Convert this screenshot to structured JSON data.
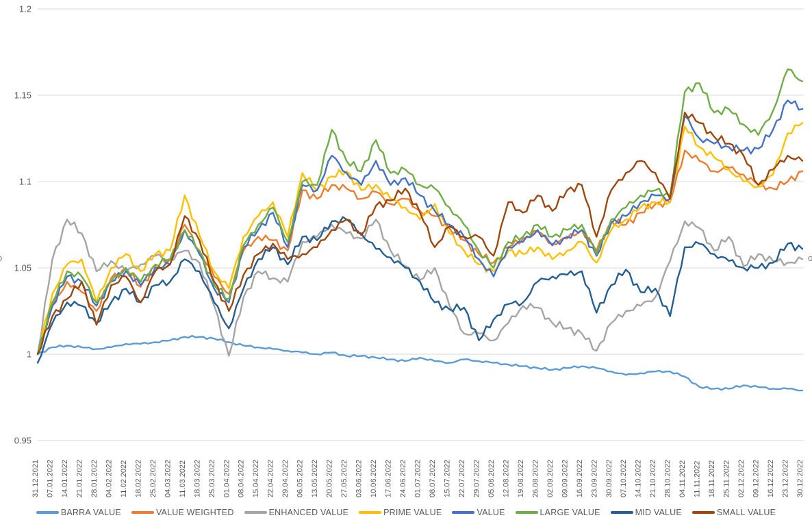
{
  "colors": {
    "background": "#FFFFFF",
    "gridline": "#D9D9D9",
    "axis_label": "#595959",
    "legend_label": "#595959"
  },
  "chart_data": {
    "type": "line",
    "title": "",
    "xlabel": "",
    "ylabel": "",
    "ylim": [
      0.95,
      1.2
    ],
    "grid": "horizontal",
    "legend_position": "bottom",
    "y_ticks": [
      1.2,
      1.15,
      1.1,
      1.05,
      1,
      0.95
    ],
    "y_tick_labels": [
      "1.2",
      "1.15",
      "1.1",
      "1.05",
      "1",
      "0.95"
    ],
    "x_tick_labels": [
      "31.12.2021",
      "07.01.2022",
      "14.01.2022",
      "21.01.2022",
      "28.01.2022",
      "04.02.2022",
      "11.02.2022",
      "18.02.2022",
      "25.02.2022",
      "04.03.2022",
      "11.03.2022",
      "18.03.2022",
      "25.03.2022",
      "01.04.2022",
      "08.04.2022",
      "15.04.2022",
      "22.04.2022",
      "29.04.2022",
      "06.05.2022",
      "13.05.2022",
      "20.05.2022",
      "27.05.2022",
      "03.06.2022",
      "10.06.2022",
      "17.06.2022",
      "24.06.2022",
      "01.07.2022",
      "08.07.2022",
      "15.07.2022",
      "22.07.2022",
      "29.07.2022",
      "05.08.2022",
      "12.08.2022",
      "19.08.2022",
      "26.08.2022",
      "02.09.2022",
      "09.09.2022",
      "16.09.2022",
      "23.09.2022",
      "30.09.2022",
      "07.10.2022",
      "14.10.2022",
      "21.10.2022",
      "28.10.2022",
      "04.11.2022",
      "11.11.2022",
      "18.11.2022",
      "25.11.2022",
      "02.12.2022",
      "09.12.2022",
      "16.12.2022",
      "23.12.2022",
      "30.12.2022"
    ],
    "edge_fragments": {
      "left": "o",
      "right": "o"
    },
    "series": [
      {
        "name": "BARRA VALUE",
        "color": "#5B9BD5",
        "values": [
          1.0,
          1.004,
          1.005,
          1.004,
          1.003,
          1.004,
          1.006,
          1.006,
          1.007,
          1.008,
          1.01,
          1.01,
          1.009,
          1.007,
          1.005,
          1.004,
          1.003,
          1.002,
          1.001,
          1.0,
          1.001,
          0.999,
          0.999,
          0.998,
          0.997,
          0.996,
          0.998,
          0.996,
          0.995,
          0.997,
          0.996,
          0.995,
          0.994,
          0.993,
          0.992,
          0.991,
          0.992,
          0.993,
          0.992,
          0.99,
          0.988,
          0.989,
          0.99,
          0.99,
          0.987,
          0.981,
          0.98,
          0.98,
          0.982,
          0.981,
          0.98,
          0.98,
          0.979
        ]
      },
      {
        "name": "VALUE WEIGHTED",
        "color": "#ED7D31",
        "values": [
          1.0,
          1.028,
          1.042,
          1.036,
          1.025,
          1.044,
          1.049,
          1.039,
          1.051,
          1.055,
          1.075,
          1.06,
          1.045,
          1.035,
          1.06,
          1.068,
          1.066,
          1.06,
          1.095,
          1.09,
          1.098,
          1.096,
          1.09,
          1.094,
          1.087,
          1.09,
          1.083,
          1.08,
          1.073,
          1.066,
          1.058,
          1.053,
          1.062,
          1.067,
          1.071,
          1.064,
          1.067,
          1.072,
          1.06,
          1.077,
          1.075,
          1.082,
          1.087,
          1.088,
          1.118,
          1.112,
          1.106,
          1.108,
          1.104,
          1.098,
          1.096,
          1.1,
          1.106
        ]
      },
      {
        "name": "ENHANCED VALUE",
        "color": "#A5A5A5",
        "values": [
          1.0,
          1.055,
          1.078,
          1.07,
          1.048,
          1.054,
          1.048,
          1.052,
          1.057,
          1.055,
          1.06,
          1.053,
          1.028,
          0.999,
          1.033,
          1.048,
          1.044,
          1.042,
          1.065,
          1.068,
          1.075,
          1.07,
          1.067,
          1.078,
          1.06,
          1.051,
          1.043,
          1.05,
          1.028,
          1.012,
          1.012,
          1.008,
          1.018,
          1.028,
          1.027,
          1.018,
          1.015,
          1.012,
          1.002,
          1.018,
          1.025,
          1.028,
          1.033,
          1.054,
          1.077,
          1.073,
          1.06,
          1.068,
          1.051,
          1.058,
          1.054,
          1.053,
          1.055
        ]
      },
      {
        "name": "PRIME VALUE",
        "color": "#FFC000",
        "values": [
          1.0,
          1.035,
          1.052,
          1.055,
          1.03,
          1.05,
          1.058,
          1.048,
          1.058,
          1.06,
          1.092,
          1.069,
          1.048,
          1.038,
          1.068,
          1.08,
          1.088,
          1.068,
          1.105,
          1.095,
          1.103,
          1.106,
          1.095,
          1.098,
          1.09,
          1.085,
          1.078,
          1.087,
          1.07,
          1.06,
          1.052,
          1.048,
          1.06,
          1.058,
          1.062,
          1.055,
          1.06,
          1.065,
          1.053,
          1.072,
          1.078,
          1.085,
          1.088,
          1.088,
          1.132,
          1.12,
          1.114,
          1.107,
          1.1,
          1.097,
          1.104,
          1.128,
          1.134
        ]
      },
      {
        "name": "VALUE",
        "color": "#4472C4",
        "values": [
          1.0,
          1.028,
          1.045,
          1.042,
          1.028,
          1.042,
          1.048,
          1.04,
          1.05,
          1.052,
          1.072,
          1.058,
          1.038,
          1.03,
          1.062,
          1.072,
          1.082,
          1.062,
          1.098,
          1.095,
          1.115,
          1.105,
          1.098,
          1.112,
          1.098,
          1.102,
          1.092,
          1.083,
          1.075,
          1.068,
          1.055,
          1.045,
          1.062,
          1.065,
          1.072,
          1.063,
          1.068,
          1.072,
          1.057,
          1.076,
          1.08,
          1.088,
          1.092,
          1.09,
          1.138,
          1.125,
          1.122,
          1.12,
          1.118,
          1.119,
          1.13,
          1.147,
          1.142
        ]
      },
      {
        "name": "LARGE VALUE",
        "color": "#70AD47",
        "values": [
          1.0,
          1.03,
          1.048,
          1.045,
          1.03,
          1.042,
          1.05,
          1.042,
          1.052,
          1.055,
          1.072,
          1.06,
          1.04,
          1.032,
          1.063,
          1.075,
          1.085,
          1.065,
          1.1,
          1.098,
          1.13,
          1.112,
          1.106,
          1.124,
          1.105,
          1.107,
          1.098,
          1.096,
          1.085,
          1.075,
          1.06,
          1.05,
          1.065,
          1.068,
          1.075,
          1.068,
          1.072,
          1.075,
          1.058,
          1.078,
          1.085,
          1.092,
          1.095,
          1.092,
          1.152,
          1.157,
          1.14,
          1.142,
          1.133,
          1.127,
          1.141,
          1.165,
          1.158
        ]
      },
      {
        "name": "MID VALUE",
        "color": "#255E91",
        "values": [
          0.995,
          1.018,
          1.03,
          1.028,
          1.018,
          1.03,
          1.038,
          1.03,
          1.04,
          1.042,
          1.055,
          1.048,
          1.03,
          1.015,
          1.038,
          1.055,
          1.062,
          1.052,
          1.068,
          1.066,
          1.077,
          1.078,
          1.07,
          1.061,
          1.056,
          1.05,
          1.042,
          1.03,
          1.026,
          1.027,
          1.008,
          1.02,
          1.029,
          1.03,
          1.042,
          1.045,
          1.046,
          1.048,
          1.024,
          1.04,
          1.049,
          1.036,
          1.038,
          1.022,
          1.062,
          1.064,
          1.058,
          1.054,
          1.05,
          1.05,
          1.053,
          1.064,
          1.061
        ]
      },
      {
        "name": "SMALL VALUE",
        "color": "#9E480E",
        "values": [
          1.0,
          1.022,
          1.032,
          1.042,
          1.017,
          1.04,
          1.045,
          1.03,
          1.048,
          1.052,
          1.08,
          1.066,
          1.042,
          1.025,
          1.046,
          1.058,
          1.064,
          1.055,
          1.058,
          1.062,
          1.072,
          1.078,
          1.069,
          1.086,
          1.089,
          1.096,
          1.082,
          1.062,
          1.074,
          1.068,
          1.068,
          1.057,
          1.088,
          1.082,
          1.092,
          1.083,
          1.095,
          1.098,
          1.068,
          1.095,
          1.105,
          1.112,
          1.105,
          1.09,
          1.14,
          1.134,
          1.126,
          1.122,
          1.115,
          1.098,
          1.107,
          1.115,
          1.112
        ]
      }
    ]
  }
}
